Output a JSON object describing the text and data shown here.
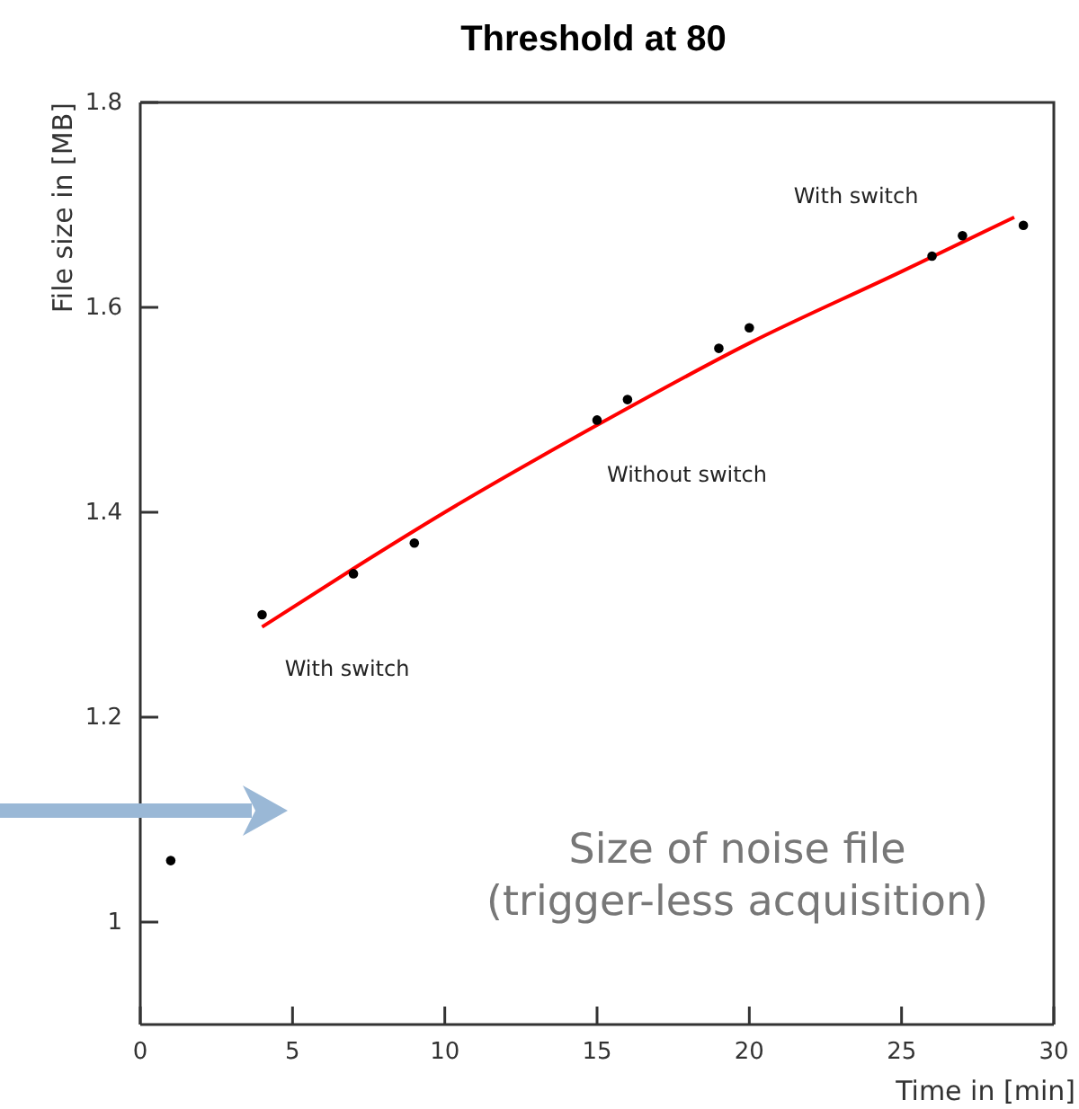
{
  "chart_data": {
    "type": "scatter",
    "title": "Threshold at 80",
    "xlabel": "Time in [min]",
    "ylabel": "File size in [MB]",
    "xlim": [
      0,
      30
    ],
    "xticks": [
      0,
      5,
      10,
      15,
      20,
      25,
      30
    ],
    "ylim": [
      0.9,
      1.8
    ],
    "yticks": [
      1,
      1.2,
      1.4,
      1.6,
      1.8
    ],
    "grid": false,
    "series": [
      {
        "color": "#000000",
        "marker": "circle",
        "x": [
          1,
          4,
          7,
          9,
          15,
          16,
          19,
          20,
          26,
          27,
          29
        ],
        "values": [
          1.06,
          1.3,
          1.34,
          1.37,
          1.49,
          1.51,
          1.56,
          1.58,
          1.65,
          1.67,
          1.68
        ]
      },
      {
        "type": "line",
        "color": "#ff0000",
        "marker": "none",
        "line_style": "solid",
        "x": [
          4,
          7,
          10,
          15,
          20,
          25,
          28.7
        ],
        "values": [
          1.288,
          1.345,
          1.4,
          1.485,
          1.565,
          1.635,
          1.688
        ]
      }
    ],
    "annotations": [
      "With switch",
      "Without switch",
      "With switch",
      "Size of noise file\n(trigger-less acquisition)"
    ]
  }
}
